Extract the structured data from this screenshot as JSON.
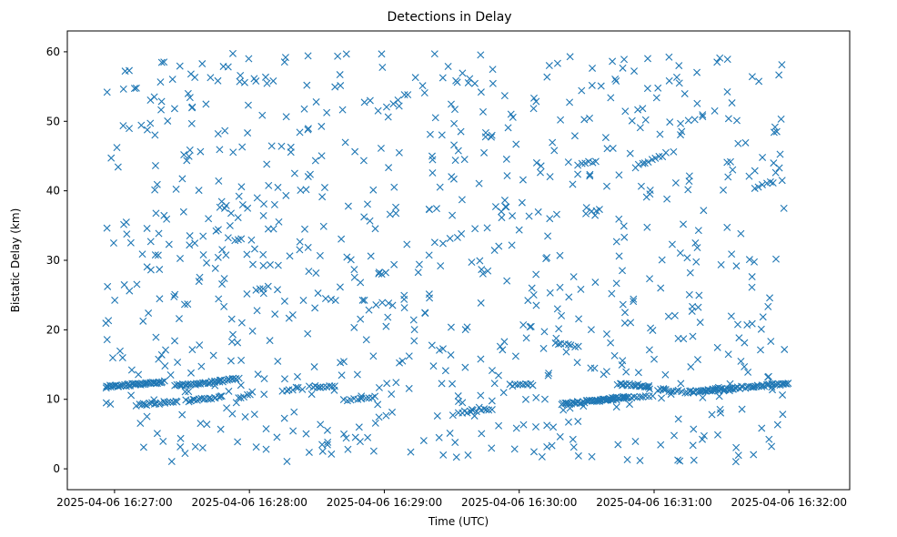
{
  "chart_data": {
    "type": "scatter",
    "title": "Detections in Delay",
    "xlabel": "Time (UTC)",
    "ylabel": "Bistatic Delay (km)",
    "marker": "x",
    "series_color": "#1f77b4",
    "x_unit": "seconds since 2025-04-06 16:27:00",
    "xlim": [
      -21,
      327
    ],
    "ylim": [
      -3,
      63
    ],
    "x_ticks": [
      {
        "value": 0,
        "label": "2025-04-06 16:27:00"
      },
      {
        "value": 60,
        "label": "2025-04-06 16:28:00"
      },
      {
        "value": 120,
        "label": "2025-04-06 16:29:00"
      },
      {
        "value": 180,
        "label": "2025-04-06 16:30:00"
      },
      {
        "value": 240,
        "label": "2025-04-06 16:31:00"
      },
      {
        "value": 300,
        "label": "2025-04-06 16:32:00"
      }
    ],
    "y_ticks": [
      {
        "value": 0,
        "label": "0"
      },
      {
        "value": 10,
        "label": "10"
      },
      {
        "value": 20,
        "label": "20"
      },
      {
        "value": 30,
        "label": "30"
      },
      {
        "value": 40,
        "label": "40"
      },
      {
        "value": 50,
        "label": "50"
      },
      {
        "value": 60,
        "label": "60"
      }
    ],
    "tracks": [
      {
        "x_start": -4,
        "x_end": 22,
        "y_start": 11.8,
        "y_end": 12.5,
        "count": 45
      },
      {
        "x_start": 27,
        "x_end": 55,
        "y_start": 11.9,
        "y_end": 12.9,
        "count": 40
      },
      {
        "x_start": 10,
        "x_end": 28,
        "y_start": 9.2,
        "y_end": 9.7,
        "count": 18
      },
      {
        "x_start": 32,
        "x_end": 48,
        "y_start": 9.8,
        "y_end": 10.3,
        "count": 18
      },
      {
        "x_start": 55,
        "x_end": 60,
        "y_start": 10.2,
        "y_end": 10.6,
        "count": 5
      },
      {
        "x_start": 110,
        "x_end": 116,
        "y_start": 10.3,
        "y_end": 10.4,
        "count": 5
      },
      {
        "x_start": 102,
        "x_end": 110,
        "y_start": 9.8,
        "y_end": 10.1,
        "count": 6
      },
      {
        "x_start": 87,
        "x_end": 98,
        "y_start": 11.8,
        "y_end": 12.0,
        "count": 10
      },
      {
        "x_start": 163,
        "x_end": 168,
        "y_start": 8.4,
        "y_end": 8.6,
        "count": 5
      },
      {
        "x_start": 153,
        "x_end": 161,
        "y_start": 8.1,
        "y_end": 8.3,
        "count": 7
      },
      {
        "x_start": 176,
        "x_end": 186,
        "y_start": 12.0,
        "y_end": 12.1,
        "count": 10
      },
      {
        "x_start": 199,
        "x_end": 228,
        "y_start": 9.3,
        "y_end": 10.3,
        "count": 45
      },
      {
        "x_start": 214,
        "x_end": 239,
        "y_start": 9.8,
        "y_end": 10.5,
        "count": 20
      },
      {
        "x_start": 224,
        "x_end": 238,
        "y_start": 12.2,
        "y_end": 11.9,
        "count": 18
      },
      {
        "x_start": 254,
        "x_end": 300,
        "y_start": 11.0,
        "y_end": 12.3,
        "count": 60
      },
      {
        "x_start": 242,
        "x_end": 252,
        "y_start": 11.4,
        "y_end": 11.1,
        "count": 10
      },
      {
        "x_start": 75,
        "x_end": 82,
        "y_start": 11.3,
        "y_end": 11.6,
        "count": 6
      },
      {
        "x_start": 63,
        "x_end": 68,
        "y_start": 25.6,
        "y_end": 26.1,
        "count": 4
      },
      {
        "x_start": 196,
        "x_end": 206,
        "y_start": 18.0,
        "y_end": 17.6,
        "count": 8
      },
      {
        "x_start": 262,
        "x_end": 275,
        "y_start": 11.3,
        "y_end": 11.4,
        "count": 8
      },
      {
        "x_start": 206,
        "x_end": 214,
        "y_start": 43.8,
        "y_end": 44.2,
        "count": 6
      },
      {
        "x_start": 232,
        "x_end": 242,
        "y_start": 43.4,
        "y_end": 45.0,
        "count": 8
      },
      {
        "x_start": 210,
        "x_end": 216,
        "y_start": 36.8,
        "y_end": 37.4,
        "count": 4
      },
      {
        "x_start": 285,
        "x_end": 292,
        "y_start": 40.3,
        "y_end": 41.2,
        "count": 5
      }
    ],
    "clutter": {
      "count": 820,
      "x_range": [
        -4,
        298
      ],
      "y_range": [
        1,
        59.9
      ],
      "seed": 4242
    }
  }
}
